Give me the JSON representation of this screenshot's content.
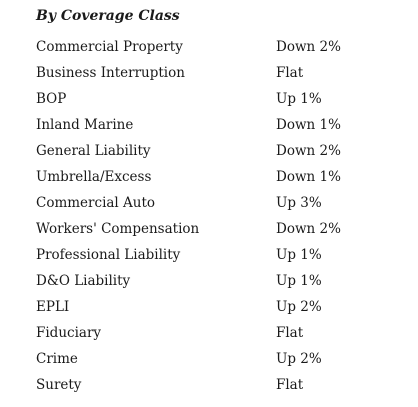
{
  "heading": "By Coverage Class",
  "rows": [
    {
      "coverage": "Commercial Property",
      "change": "Down 2%"
    },
    {
      "coverage": "Business Interruption",
      "change": "Flat"
    },
    {
      "coverage": "BOP",
      "change": "Up 1%"
    },
    {
      "coverage": "Inland Marine",
      "change": "Down 1%"
    },
    {
      "coverage": "General Liability",
      "change": "Down 2%"
    },
    {
      "coverage": "Umbrella/Excess",
      "change": "Down 1%"
    },
    {
      "coverage": "Commercial Auto",
      "change": "Up 3%"
    },
    {
      "coverage": "Workers' Compensation",
      "change": "Down 2%"
    },
    {
      "coverage": "Professional Liability",
      "change": "Up 1%"
    },
    {
      "coverage": "D&O Liability",
      "change": "Up 1%"
    },
    {
      "coverage": "EPLI",
      "change": "Up 2%"
    },
    {
      "coverage": "Fiduciary",
      "change": "Flat"
    },
    {
      "coverage": "Crime",
      "change": "Up 2%"
    },
    {
      "coverage": "Surety",
      "change": "Flat"
    }
  ]
}
